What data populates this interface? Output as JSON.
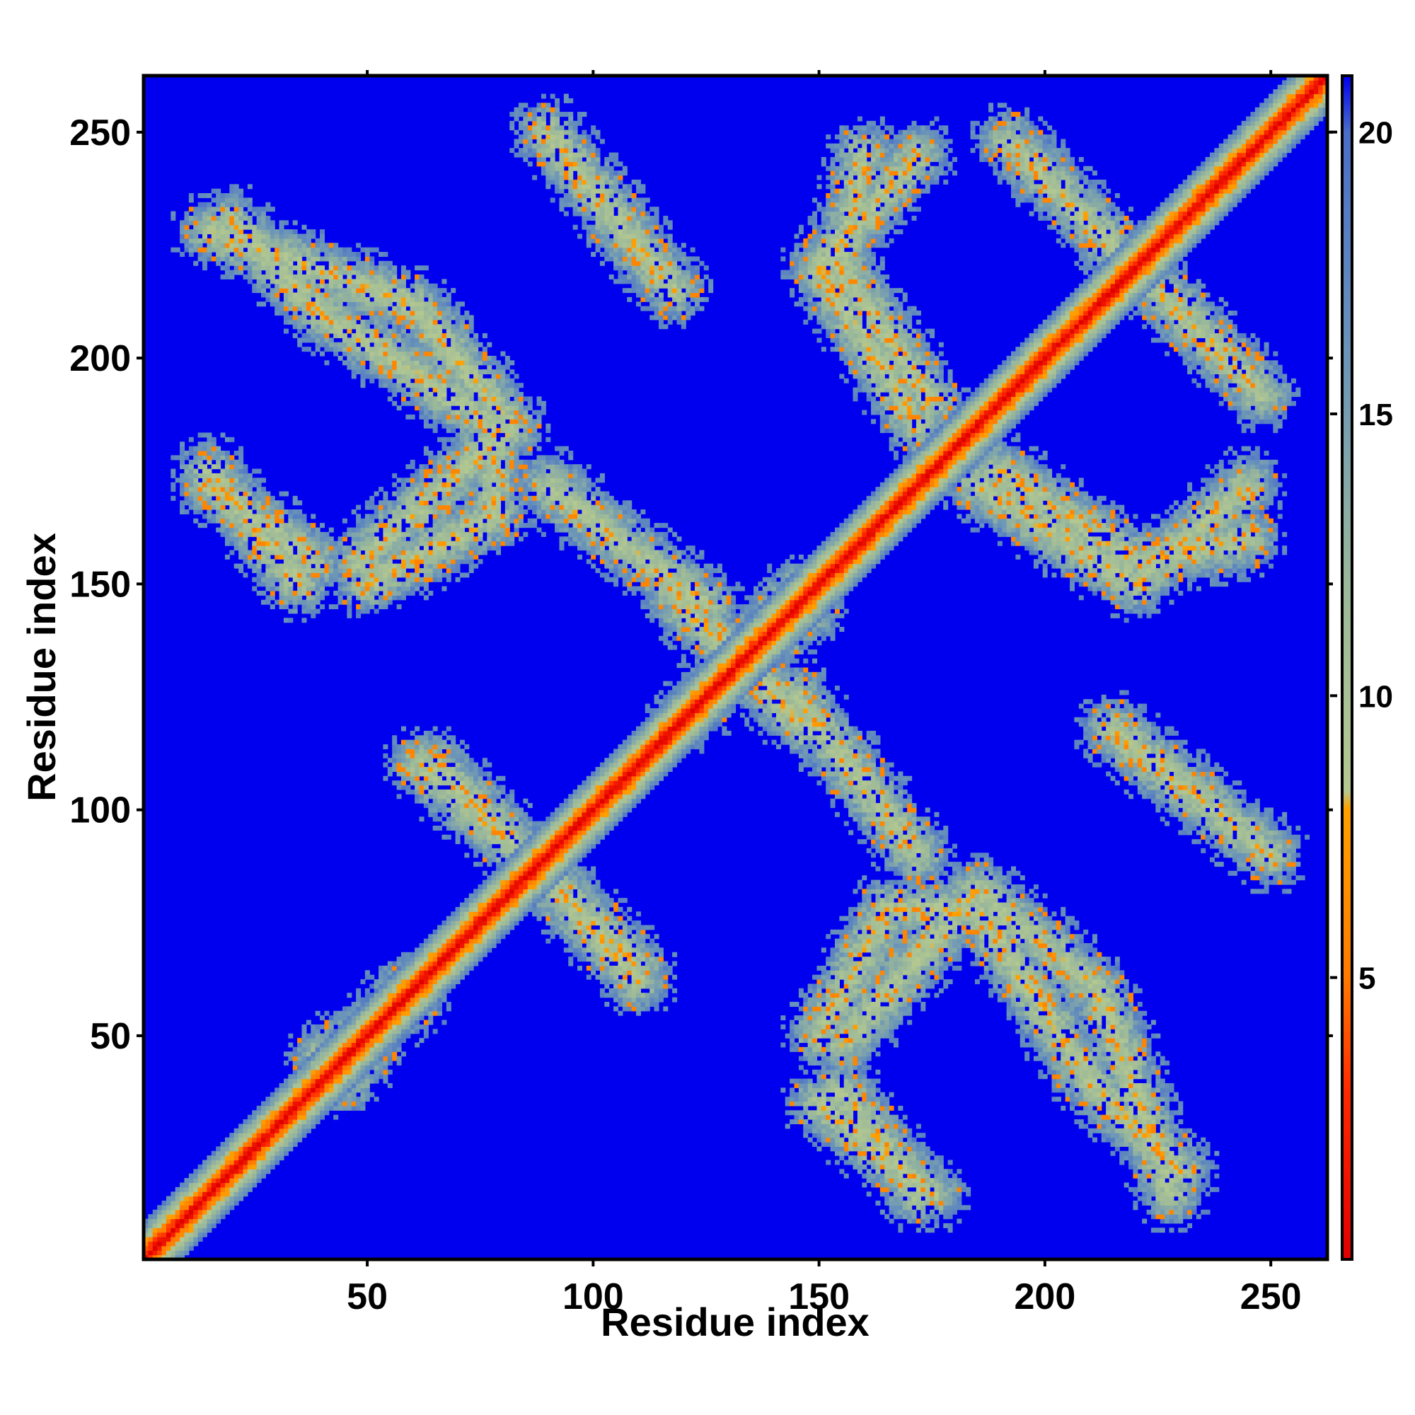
{
  "chart_data": {
    "type": "heatmap",
    "title": "",
    "xlabel": "Residue index",
    "ylabel": "Residue index",
    "xlim": [
      1,
      262
    ],
    "ylim": [
      1,
      262
    ],
    "x_ticks": [
      50,
      100,
      150,
      200,
      250
    ],
    "y_ticks": [
      50,
      100,
      150,
      200,
      250
    ],
    "x_tick_labels": [
      "50",
      "100",
      "150",
      "200",
      "250"
    ],
    "y_tick_labels": [
      "50",
      "100",
      "150",
      "200",
      "250"
    ],
    "grid": false,
    "colorbar": {
      "ticks": [
        5,
        10,
        15,
        20
      ],
      "tick_labels": [
        "5",
        "10",
        "15",
        "20"
      ],
      "range": [
        0,
        21
      ],
      "stops": [
        {
          "value": 0,
          "color": "#e00000"
        },
        {
          "value": 3,
          "color": "#ff2a00"
        },
        {
          "value": 5,
          "color": "#ff7a00"
        },
        {
          "value": 8,
          "color": "#ffa000"
        },
        {
          "value": 8.3,
          "color": "#b4c890"
        },
        {
          "value": 12,
          "color": "#9ab89a"
        },
        {
          "value": 16,
          "color": "#6b95b8"
        },
        {
          "value": 20,
          "color": "#4a6ec8"
        },
        {
          "value": 21,
          "color": "#0000ee"
        }
      ]
    },
    "background_color": "#0000ee",
    "diagonal": {
      "from": [
        1,
        1
      ],
      "to": [
        262,
        262
      ],
      "half_width_residues": 8
    },
    "contact_bands": [
      {
        "from": [
          15,
          172
        ],
        "to": [
          38,
          155
        ]
      },
      {
        "from": [
          48,
          155
        ],
        "to": [
          82,
          185
        ]
      },
      {
        "from": [
          82,
          185
        ],
        "to": [
          60,
          212
        ]
      },
      {
        "from": [
          60,
          212
        ],
        "to": [
          15,
          228
        ]
      },
      {
        "from": [
          90,
          250
        ],
        "to": [
          115,
          218
        ]
      },
      {
        "from": [
          90,
          172
        ],
        "to": [
          125,
          145
        ]
      },
      {
        "from": [
          160,
          245
        ],
        "to": [
          155,
          220
        ]
      },
      {
        "from": [
          155,
          220
        ],
        "to": [
          175,
          190
        ]
      },
      {
        "from": [
          185,
          172
        ],
        "to": [
          220,
          150
        ]
      },
      {
        "from": [
          220,
          150
        ],
        "to": [
          245,
          172
        ]
      },
      {
        "from": [
          192,
          248
        ],
        "to": [
          215,
          225
        ]
      },
      {
        "from": [
          62,
          110
        ],
        "to": [
          90,
          85
        ]
      },
      {
        "from": [
          90,
          85
        ],
        "to": [
          110,
          65
        ]
      },
      {
        "from": [
          40,
          45
        ],
        "to": [
          60,
          58
        ]
      },
      {
        "from": [
          145,
          125
        ],
        "to": [
          170,
          92
        ]
      },
      {
        "from": [
          150,
          50
        ],
        "to": [
          165,
          78
        ]
      },
      {
        "from": [
          165,
          78
        ],
        "to": [
          185,
          78
        ]
      },
      {
        "from": [
          185,
          78
        ],
        "to": [
          210,
          40
        ]
      },
      {
        "from": [
          210,
          40
        ],
        "to": [
          230,
          20
        ]
      },
      {
        "from": [
          150,
          35
        ],
        "to": [
          175,
          15
        ]
      },
      {
        "from": [
          215,
          118
        ],
        "to": [
          250,
          90
        ]
      },
      {
        "from": [
          118,
          148
        ],
        "to": [
          145,
          120
        ]
      },
      {
        "from": [
          120,
          120
        ],
        "to": [
          145,
          148
        ]
      }
    ]
  }
}
